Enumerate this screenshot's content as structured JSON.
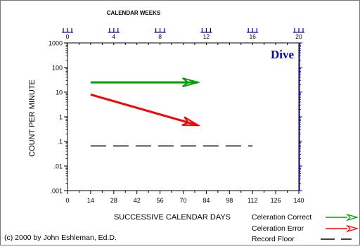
{
  "chart_data": {
    "type": "line",
    "chart_kind": "standard celeration chart",
    "title": "Dive",
    "top_axis": {
      "label": "CALENDAR WEEKS",
      "range": [
        0,
        20
      ],
      "ticks": [
        0,
        4,
        8,
        12,
        16,
        20
      ],
      "tick_labels": [
        "0",
        "4",
        "8",
        "12",
        "16",
        "20"
      ],
      "minor_tick_step": 1,
      "major_tick_step": 2
    },
    "xaxis": {
      "label": "SUCCESSIVE CALENDAR DAYS",
      "range": [
        0,
        140
      ],
      "ticks": [
        0,
        14,
        28,
        42,
        56,
        70,
        84,
        98,
        112,
        126,
        140
      ],
      "tick_labels": [
        "0",
        "14",
        "28",
        "42",
        "56",
        "70",
        "84",
        "98",
        "112",
        "126",
        "140"
      ],
      "minor_tick_step": 7
    },
    "yaxis": {
      "label": "COUNT PER MINUTE",
      "scale": "log",
      "range": [
        0.001,
        1000
      ],
      "ticks": [
        0.001,
        0.01,
        0.1,
        1,
        10,
        100,
        1000
      ],
      "tick_labels": [
        ".001",
        ".01",
        ".1",
        "1",
        "10",
        "100",
        "1000"
      ]
    },
    "grid": false,
    "series": [
      {
        "name": "Celeration Correct",
        "color": "#00a000",
        "style": "solid-arrow",
        "x": [
          14,
          79
        ],
        "y": [
          25,
          25
        ]
      },
      {
        "name": "Celeration Error",
        "color": "#ff0000",
        "style": "solid-arrow",
        "x": [
          14,
          79
        ],
        "y": [
          8,
          0.45
        ]
      },
      {
        "name": "Record Floor",
        "color": "#000000",
        "style": "dashed",
        "x": [
          14,
          112
        ],
        "y": [
          0.065,
          0.065
        ]
      }
    ],
    "legend_position": "bottom-right"
  },
  "copyright": "(c) 2000 by John Eshleman, Ed.D.",
  "colors": {
    "frame": "#000000",
    "top_axis": "#0000cc",
    "title": "#0000cc",
    "correct": "#00a000",
    "error": "#ff0000"
  }
}
